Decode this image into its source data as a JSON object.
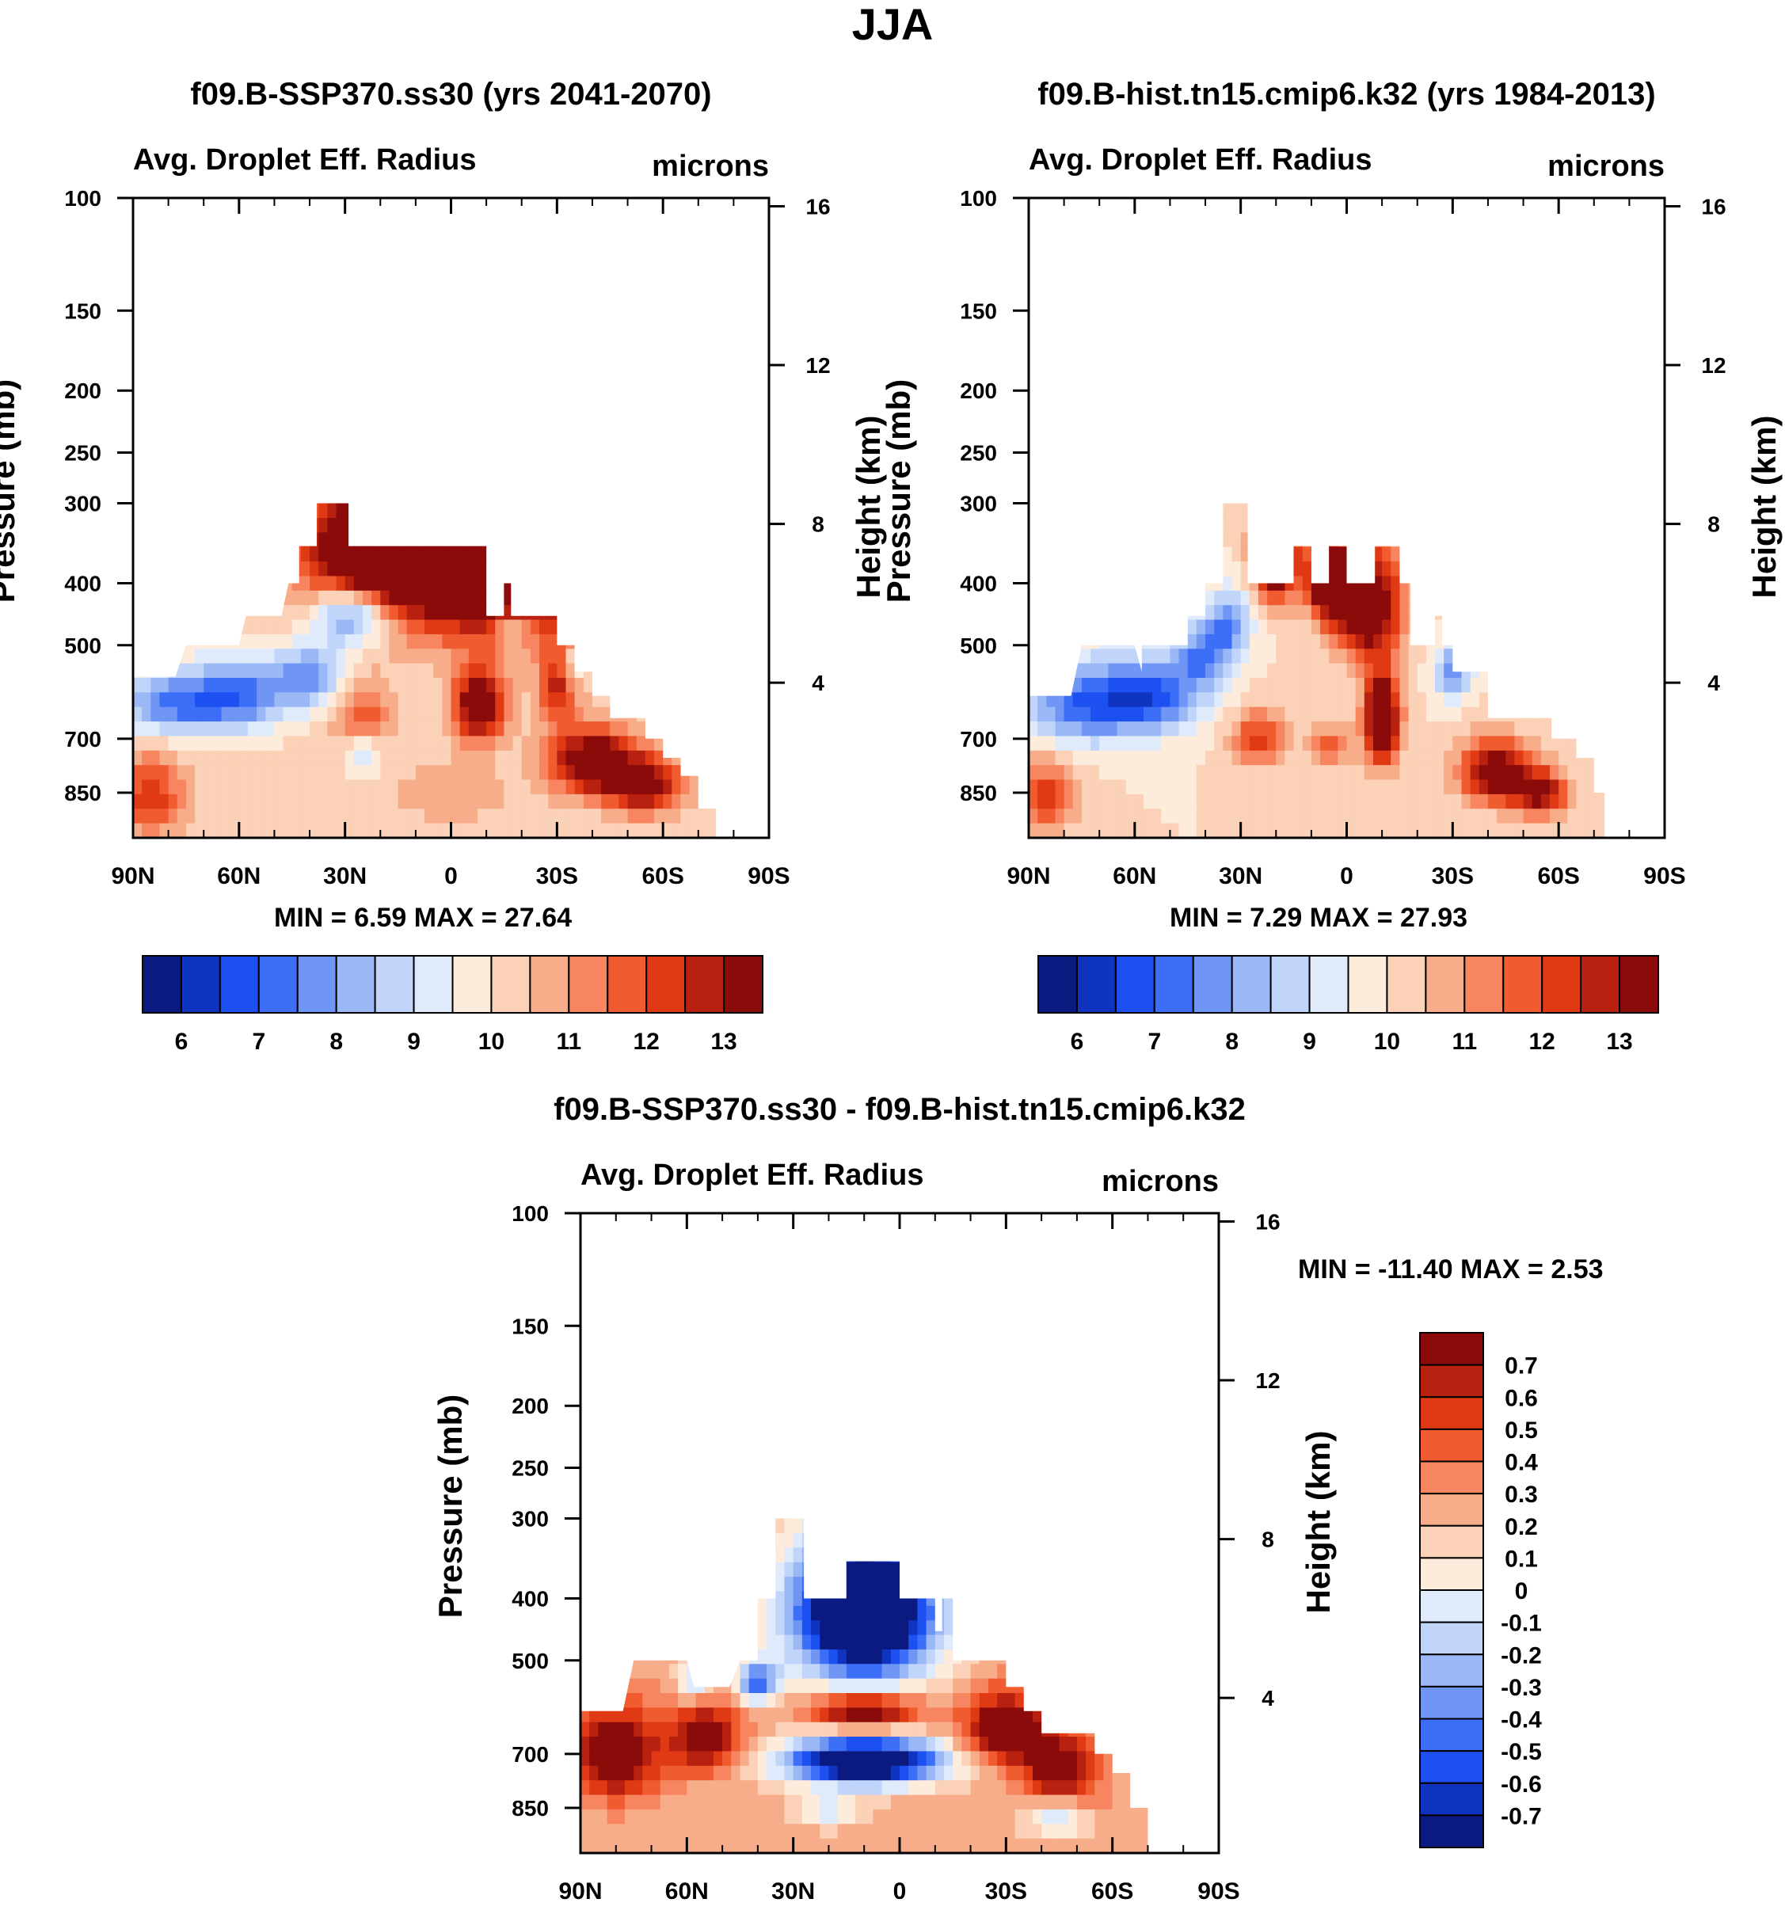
{
  "figure": {
    "title": "JJA"
  },
  "colors": {
    "main_scale": [
      "#0a1a80",
      "#0f34c0",
      "#1c50f0",
      "#3d6ef8",
      "#6f95f5",
      "#9ab8f5",
      "#c1d5fa",
      "#dfeafb",
      "#fdecdc",
      "#fbd1b7",
      "#f8ad8a",
      "#f68560",
      "#f05c30",
      "#e03a14",
      "#b82010",
      "#8b0a0a"
    ],
    "diff_scale": [
      "#0a1a80",
      "#0f34c0",
      "#1c50f0",
      "#3d6ef8",
      "#6f95f5",
      "#9ab8f5",
      "#c1d5fa",
      "#dfeafb",
      "#fdecdc",
      "#fbd1b7",
      "#f8ad8a",
      "#f68560",
      "#f05c30",
      "#e03a14",
      "#b82010",
      "#8b0a0a"
    ]
  },
  "chart_data": [
    {
      "id": "ssp370",
      "type": "heatmap",
      "title": "f09.B-SSP370.ss30 (yrs 2041-2070)",
      "left_label": "Avg. Droplet Eff. Radius",
      "right_label": "microns",
      "ylabel": "Pressure (mb)",
      "ylabel2": "Height (km)",
      "x_ticks": [
        "90N",
        "60N",
        "30N",
        "0",
        "30S",
        "60S",
        "90S"
      ],
      "x_lim": [
        90,
        -90
      ],
      "p_ticks": [
        100,
        150,
        200,
        250,
        300,
        400,
        500,
        700,
        850
      ],
      "p_lim": [
        100,
        1000
      ],
      "h_ticks": [
        16,
        12,
        8,
        4
      ],
      "min_max": "MIN =   6.59  MAX =  27.64",
      "colorbar": {
        "orientation": "horizontal",
        "labels": [
          "6",
          "7",
          "8",
          "9",
          "10",
          "11",
          "12",
          "13"
        ],
        "levels": [
          5.5,
          6,
          6.5,
          7,
          7.5,
          8,
          8.5,
          9,
          9.5,
          10,
          10.5,
          11,
          11.5,
          12,
          12.5,
          13,
          13.5
        ]
      },
      "field": {
        "top_mb": [
          [
            90,
            560
          ],
          [
            78,
            560
          ],
          [
            75,
            500
          ],
          [
            60,
            500
          ],
          [
            58,
            450
          ],
          [
            48,
            450
          ],
          [
            46,
            400
          ],
          [
            43,
            400
          ],
          [
            43,
            350
          ],
          [
            38,
            350
          ],
          [
            38,
            300
          ],
          [
            29,
            300
          ],
          [
            29,
            350
          ],
          [
            -10,
            350
          ],
          [
            -10,
            450
          ],
          [
            -15,
            450
          ],
          [
            -15,
            400
          ],
          [
            -17,
            400
          ],
          [
            -17,
            450
          ],
          [
            -30,
            450
          ],
          [
            -30,
            500
          ],
          [
            -35,
            500
          ],
          [
            -35,
            550
          ],
          [
            -40,
            550
          ],
          [
            -40,
            600
          ],
          [
            -45,
            600
          ],
          [
            -45,
            650
          ],
          [
            -55,
            650
          ],
          [
            -55,
            700
          ],
          [
            -60,
            700
          ],
          [
            -60,
            750
          ],
          [
            -65,
            750
          ],
          [
            -65,
            800
          ],
          [
            -70,
            800
          ],
          [
            -70,
            900
          ],
          [
            -75,
            900
          ],
          [
            -75,
            1000
          ]
        ],
        "background": 10.2,
        "blobs": [
          {
            "lat": 80,
            "p": 620,
            "dlat": 14,
            "dp": 70,
            "v": -2.6
          },
          {
            "lat": 60,
            "p": 600,
            "dlat": 14,
            "dp": 80,
            "v": -2.9
          },
          {
            "lat": 40,
            "p": 560,
            "dlat": 10,
            "dp": 60,
            "v": -2.5
          },
          {
            "lat": 28,
            "p": 450,
            "dlat": 10,
            "dp": 50,
            "v": -3.0
          },
          {
            "lat": 25,
            "p": 740,
            "dlat": 5,
            "dp": 60,
            "v": -1.6
          },
          {
            "lat": -17,
            "p": 470,
            "dlat": 5,
            "dp": 30,
            "v": -1.8
          },
          {
            "lat": -35,
            "p": 530,
            "dlat": 4,
            "dp": 40,
            "v": -1.3
          },
          {
            "lat": -8,
            "p": 620,
            "dlat": 7,
            "dp": 80,
            "v": 4.2
          },
          {
            "lat": 25,
            "p": 650,
            "dlat": 8,
            "dp": 80,
            "v": 1.8
          },
          {
            "lat": -40,
            "p": 760,
            "dlat": 12,
            "dp": 90,
            "v": 4.0
          },
          {
            "lat": -55,
            "p": 830,
            "dlat": 10,
            "dp": 80,
            "v": 3.5
          },
          {
            "lat": 85,
            "p": 860,
            "dlat": 9,
            "dp": 120,
            "v": 2.2
          },
          {
            "lat": 0,
            "p": 850,
            "dlat": 15,
            "dp": 90,
            "v": 0.8
          },
          {
            "lat": -10,
            "p": 380,
            "dlat": 35,
            "dp": 100,
            "v": 5.0
          },
          {
            "lat": 20,
            "p": 350,
            "dlat": 20,
            "dp": 60,
            "v": 5.0
          },
          {
            "lat": -30,
            "p": 580,
            "dlat": 5,
            "dp": 80,
            "v": 2.5
          }
        ]
      }
    },
    {
      "id": "hist",
      "type": "heatmap",
      "title": "f09.B-hist.tn15.cmip6.k32 (yrs 1984-2013)",
      "left_label": "Avg. Droplet Eff. Radius",
      "right_label": "microns",
      "ylabel": "Pressure (mb)",
      "ylabel2": "Height (km)",
      "x_ticks": [
        "90N",
        "60N",
        "30N",
        "0",
        "30S",
        "60S",
        "90S"
      ],
      "x_lim": [
        90,
        -90
      ],
      "p_ticks": [
        100,
        150,
        200,
        250,
        300,
        400,
        500,
        700,
        850
      ],
      "p_lim": [
        100,
        1000
      ],
      "h_ticks": [
        16,
        12,
        8,
        4
      ],
      "min_max": "MIN =   7.29  MAX =  27.93",
      "colorbar": {
        "orientation": "horizontal",
        "labels": [
          "6",
          "7",
          "8",
          "9",
          "10",
          "11",
          "12",
          "13"
        ],
        "levels": [
          5.5,
          6,
          6.5,
          7,
          7.5,
          8,
          8.5,
          9,
          9.5,
          10,
          10.5,
          11,
          11.5,
          12,
          12.5,
          13,
          13.5
        ]
      },
      "field": {
        "top_mb": [
          [
            90,
            600
          ],
          [
            78,
            600
          ],
          [
            75,
            500
          ],
          [
            60,
            500
          ],
          [
            58,
            550
          ],
          [
            58,
            500
          ],
          [
            45,
            500
          ],
          [
            45,
            450
          ],
          [
            40,
            450
          ],
          [
            40,
            400
          ],
          [
            35,
            400
          ],
          [
            35,
            300
          ],
          [
            28,
            300
          ],
          [
            28,
            400
          ],
          [
            15,
            400
          ],
          [
            15,
            350
          ],
          [
            10,
            350
          ],
          [
            10,
            400
          ],
          [
            5,
            400
          ],
          [
            5,
            350
          ],
          [
            0,
            350
          ],
          [
            0,
            400
          ],
          [
            -8,
            400
          ],
          [
            -8,
            350
          ],
          [
            -15,
            350
          ],
          [
            -15,
            400
          ],
          [
            -18,
            400
          ],
          [
            -18,
            500
          ],
          [
            -25,
            500
          ],
          [
            -25,
            450
          ],
          [
            -27,
            450
          ],
          [
            -27,
            500
          ],
          [
            -30,
            500
          ],
          [
            -30,
            550
          ],
          [
            -35,
            550
          ],
          [
            -35,
            550
          ],
          [
            -40,
            550
          ],
          [
            -40,
            650
          ],
          [
            -58,
            650
          ],
          [
            -58,
            700
          ],
          [
            -65,
            700
          ],
          [
            -65,
            750
          ],
          [
            -70,
            750
          ],
          [
            -70,
            850
          ],
          [
            -73,
            850
          ],
          [
            -73,
            1000
          ]
        ],
        "background": 10.0,
        "blobs": [
          {
            "lat": 75,
            "p": 620,
            "dlat": 16,
            "dp": 90,
            "v": -2.8
          },
          {
            "lat": 55,
            "p": 600,
            "dlat": 14,
            "dp": 80,
            "v": -2.9
          },
          {
            "lat": 40,
            "p": 520,
            "dlat": 8,
            "dp": 60,
            "v": -2.4
          },
          {
            "lat": 33,
            "p": 460,
            "dlat": 6,
            "dp": 50,
            "v": -2.2
          },
          {
            "lat": -30,
            "p": 550,
            "dlat": 5,
            "dp": 50,
            "v": -2.4
          },
          {
            "lat": -10,
            "p": 650,
            "dlat": 5,
            "dp": 110,
            "v": 5.0
          },
          {
            "lat": 25,
            "p": 700,
            "dlat": 8,
            "dp": 70,
            "v": 2.2
          },
          {
            "lat": 5,
            "p": 720,
            "dlat": 6,
            "dp": 60,
            "v": 1.6
          },
          {
            "lat": -42,
            "p": 790,
            "dlat": 10,
            "dp": 90,
            "v": 3.8
          },
          {
            "lat": -55,
            "p": 850,
            "dlat": 8,
            "dp": 70,
            "v": 3.2
          },
          {
            "lat": 85,
            "p": 860,
            "dlat": 9,
            "dp": 110,
            "v": 2.2
          },
          {
            "lat": -5,
            "p": 430,
            "dlat": 10,
            "dp": 80,
            "v": 5.0
          },
          {
            "lat": 20,
            "p": 360,
            "dlat": 6,
            "dp": 60,
            "v": 5.0
          },
          {
            "lat": 5,
            "p": 390,
            "dlat": 6,
            "dp": 50,
            "v": 5.0
          }
        ]
      }
    },
    {
      "id": "diff",
      "type": "heatmap",
      "title": "f09.B-SSP370.ss30 - f09.B-hist.tn15.cmip6.k32",
      "left_label": "Avg. Droplet Eff. Radius",
      "right_label": "microns",
      "ylabel": "Pressure (mb)",
      "ylabel2": "Height (km)",
      "x_ticks": [
        "90N",
        "60N",
        "30N",
        "0",
        "30S",
        "60S",
        "90S"
      ],
      "x_lim": [
        90,
        -90
      ],
      "p_ticks": [
        100,
        150,
        200,
        250,
        300,
        400,
        500,
        700,
        850
      ],
      "p_lim": [
        100,
        1000
      ],
      "h_ticks": [
        16,
        12,
        8,
        4
      ],
      "min_max": "MIN = -11.40  MAX =   2.53",
      "colorbar": {
        "orientation": "vertical",
        "labels": [
          "0.7",
          "0.6",
          "0.5",
          "0.4",
          "0.3",
          "0.2",
          "0.1",
          "0",
          "-0.1",
          "-0.2",
          "-0.3",
          "-0.4",
          "-0.5",
          "-0.6",
          "-0.7"
        ],
        "levels": [
          -0.8,
          -0.7,
          -0.6,
          -0.5,
          -0.4,
          -0.3,
          -0.2,
          -0.1,
          0,
          0.1,
          0.2,
          0.3,
          0.4,
          0.5,
          0.6,
          0.7,
          0.8
        ]
      },
      "field": {
        "top_mb": [
          [
            90,
            600
          ],
          [
            78,
            600
          ],
          [
            75,
            500
          ],
          [
            60,
            500
          ],
          [
            58,
            550
          ],
          [
            48,
            550
          ],
          [
            45,
            500
          ],
          [
            40,
            500
          ],
          [
            40,
            400
          ],
          [
            35,
            400
          ],
          [
            35,
            300
          ],
          [
            27,
            300
          ],
          [
            27,
            400
          ],
          [
            15,
            400
          ],
          [
            15,
            350
          ],
          [
            0,
            350
          ],
          [
            0,
            400
          ],
          [
            -10,
            400
          ],
          [
            -10,
            450
          ],
          [
            -12,
            450
          ],
          [
            -12,
            400
          ],
          [
            -15,
            400
          ],
          [
            -15,
            500
          ],
          [
            -30,
            500
          ],
          [
            -30,
            550
          ],
          [
            -35,
            550
          ],
          [
            -35,
            600
          ],
          [
            -40,
            600
          ],
          [
            -40,
            650
          ],
          [
            -55,
            650
          ],
          [
            -55,
            700
          ],
          [
            -60,
            700
          ],
          [
            -60,
            750
          ],
          [
            -65,
            750
          ],
          [
            -65,
            850
          ],
          [
            -70,
            850
          ],
          [
            -70,
            1000
          ]
        ],
        "background": 0.25,
        "blobs": [
          {
            "lat": 80,
            "p": 700,
            "dlat": 12,
            "dp": 110,
            "v": 0.7
          },
          {
            "lat": 55,
            "p": 660,
            "dlat": 10,
            "dp": 80,
            "v": 0.6
          },
          {
            "lat": 10,
            "p": 600,
            "dlat": 15,
            "dp": 40,
            "v": 0.7
          },
          {
            "lat": -30,
            "p": 640,
            "dlat": 12,
            "dp": 80,
            "v": 0.7
          },
          {
            "lat": -45,
            "p": 740,
            "dlat": 10,
            "dp": 90,
            "v": 0.6
          },
          {
            "lat": 10,
            "p": 720,
            "dlat": 22,
            "dp": 60,
            "v": -1.4
          },
          {
            "lat": 10,
            "p": 420,
            "dlat": 20,
            "dp": 110,
            "v": -1.6
          },
          {
            "lat": 40,
            "p": 540,
            "dlat": 6,
            "dp": 40,
            "v": -0.7
          },
          {
            "lat": 58,
            "p": 540,
            "dlat": 5,
            "dp": 40,
            "v": -0.4
          },
          {
            "lat": 20,
            "p": 860,
            "dlat": 10,
            "dp": 50,
            "v": -0.3
          },
          {
            "lat": -45,
            "p": 880,
            "dlat": 10,
            "dp": 60,
            "v": -0.35
          },
          {
            "lat": -55,
            "p": 860,
            "dlat": 6,
            "dp": 50,
            "v": 0.1
          }
        ]
      }
    }
  ]
}
